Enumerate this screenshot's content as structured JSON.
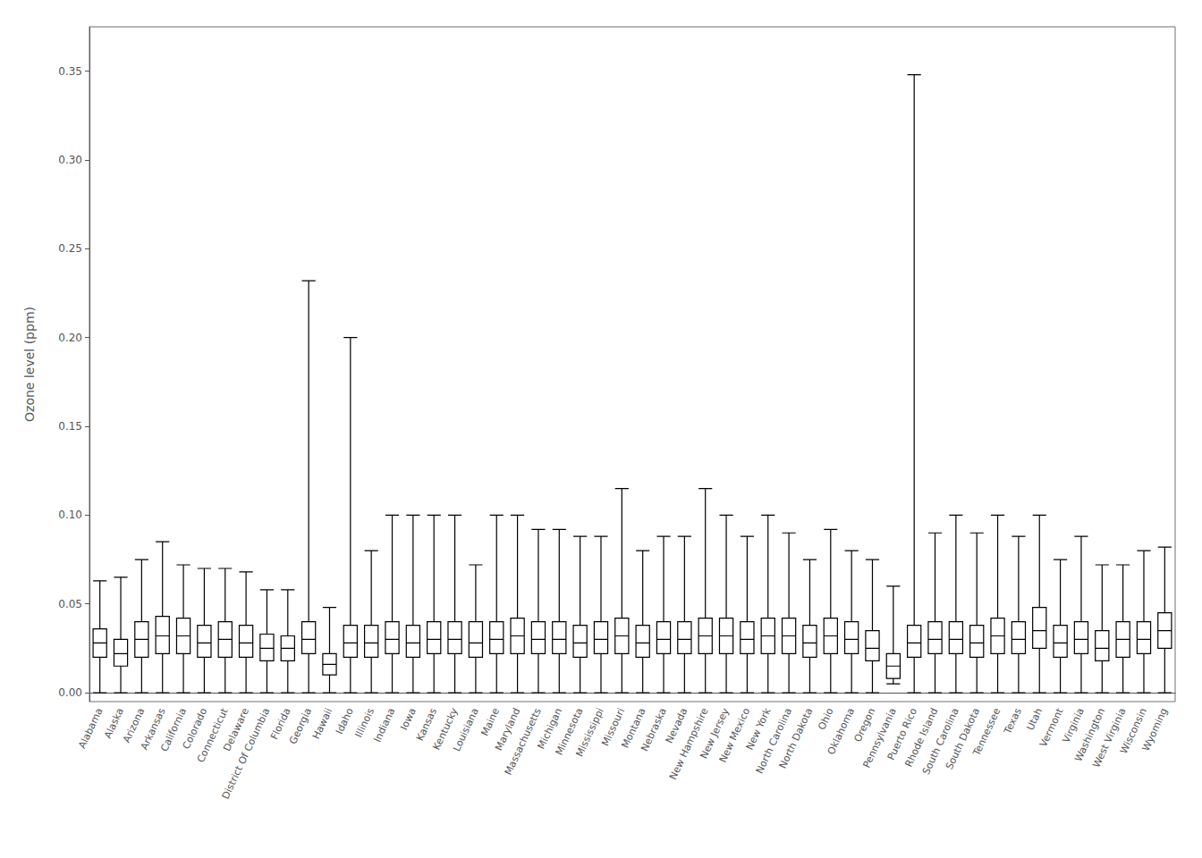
{
  "chart_data": {
    "type": "box",
    "categories": [
      "Alabama",
      "Alaska",
      "Arizona",
      "Arkansas",
      "California",
      "Colorado",
      "Connecticut",
      "Delaware",
      "District Of Columbia",
      "Florida",
      "Georgia",
      "Hawaii",
      "Idaho",
      "Illinois",
      "Indiana",
      "Iowa",
      "Kansas",
      "Kentucky",
      "Louisiana",
      "Maine",
      "Maryland",
      "Massachusetts",
      "Michigan",
      "Minnesota",
      "Mississippi",
      "Missouri",
      "Montana",
      "Nebraska",
      "Nevada",
      "New Hampshire",
      "New Jersey",
      "New Mexico",
      "New York",
      "North Carolina",
      "North Dakota",
      "Ohio",
      "Oklahoma",
      "Oregon",
      "Pennsylvania",
      "Puerto Rico",
      "Rhode Island",
      "South Carolina",
      "South Dakota",
      "Tennessee",
      "Texas",
      "Utah",
      "Vermont",
      "Virginia",
      "Washington",
      "West Virginia",
      "Wisconsin",
      "Wyoming"
    ],
    "whisker_low": [
      0.0,
      0.0,
      0.0,
      0.0,
      0.0,
      0.0,
      0.0,
      0.0,
      0.0,
      0.0,
      0.0,
      0.0,
      0.0,
      0.0,
      0.0,
      0.0,
      0.0,
      0.0,
      0.0,
      0.0,
      0.0,
      0.0,
      0.0,
      0.0,
      0.0,
      0.0,
      0.0,
      0.0,
      0.0,
      0.0,
      0.0,
      0.0,
      0.0,
      0.0,
      0.0,
      0.0,
      0.0,
      0.0,
      0.005,
      0.0,
      0.0,
      0.0,
      0.0,
      0.0,
      0.0,
      0.0,
      0.0,
      0.0,
      0.0,
      0.0,
      0.0,
      0.0
    ],
    "q1": [
      0.02,
      0.015,
      0.02,
      0.022,
      0.022,
      0.02,
      0.02,
      0.02,
      0.018,
      0.018,
      0.022,
      0.01,
      0.02,
      0.02,
      0.022,
      0.02,
      0.022,
      0.022,
      0.02,
      0.022,
      0.022,
      0.022,
      0.022,
      0.02,
      0.022,
      0.022,
      0.02,
      0.022,
      0.022,
      0.022,
      0.022,
      0.022,
      0.022,
      0.022,
      0.02,
      0.022,
      0.022,
      0.018,
      0.008,
      0.02,
      0.022,
      0.022,
      0.02,
      0.022,
      0.022,
      0.025,
      0.02,
      0.022,
      0.018,
      0.02,
      0.022,
      0.025
    ],
    "median": [
      0.028,
      0.022,
      0.03,
      0.032,
      0.032,
      0.028,
      0.03,
      0.028,
      0.025,
      0.025,
      0.03,
      0.016,
      0.028,
      0.028,
      0.03,
      0.028,
      0.03,
      0.03,
      0.028,
      0.03,
      0.032,
      0.03,
      0.03,
      0.028,
      0.03,
      0.032,
      0.028,
      0.03,
      0.03,
      0.032,
      0.032,
      0.03,
      0.032,
      0.032,
      0.028,
      0.032,
      0.03,
      0.025,
      0.015,
      0.028,
      0.03,
      0.03,
      0.028,
      0.032,
      0.03,
      0.035,
      0.028,
      0.03,
      0.025,
      0.03,
      0.03,
      0.035
    ],
    "q3": [
      0.036,
      0.03,
      0.04,
      0.043,
      0.042,
      0.038,
      0.04,
      0.038,
      0.033,
      0.032,
      0.04,
      0.022,
      0.038,
      0.038,
      0.04,
      0.038,
      0.04,
      0.04,
      0.04,
      0.04,
      0.042,
      0.04,
      0.04,
      0.038,
      0.04,
      0.042,
      0.038,
      0.04,
      0.04,
      0.042,
      0.042,
      0.04,
      0.042,
      0.042,
      0.038,
      0.042,
      0.04,
      0.035,
      0.022,
      0.038,
      0.04,
      0.04,
      0.038,
      0.042,
      0.04,
      0.048,
      0.038,
      0.04,
      0.035,
      0.04,
      0.04,
      0.045
    ],
    "whisker_high": [
      0.063,
      0.065,
      0.075,
      0.085,
      0.072,
      0.07,
      0.07,
      0.068,
      0.058,
      0.058,
      0.232,
      0.048,
      0.2,
      0.08,
      0.1,
      0.1,
      0.1,
      0.1,
      0.072,
      0.1,
      0.1,
      0.092,
      0.092,
      0.088,
      0.088,
      0.115,
      0.08,
      0.088,
      0.088,
      0.115,
      0.1,
      0.088,
      0.1,
      0.09,
      0.075,
      0.092,
      0.08,
      0.075,
      0.06,
      0.348,
      0.09,
      0.1,
      0.09,
      0.1,
      0.088,
      0.1,
      0.075,
      0.088,
      0.072,
      0.072,
      0.08,
      0.082
    ],
    "ylabel": "Ozone level (ppm)",
    "ylim": [
      -0.005,
      0.375
    ],
    "yticks": [
      {
        "value": 0.0,
        "label": "0.00"
      },
      0.05,
      {
        "value": 0.1,
        "label": "0.10"
      },
      0.15,
      {
        "value": 0.2,
        "label": "0.20"
      },
      0.25,
      {
        "value": 0.3,
        "label": "0.30"
      },
      0.35
    ],
    "color": "white",
    "grid": false
  }
}
